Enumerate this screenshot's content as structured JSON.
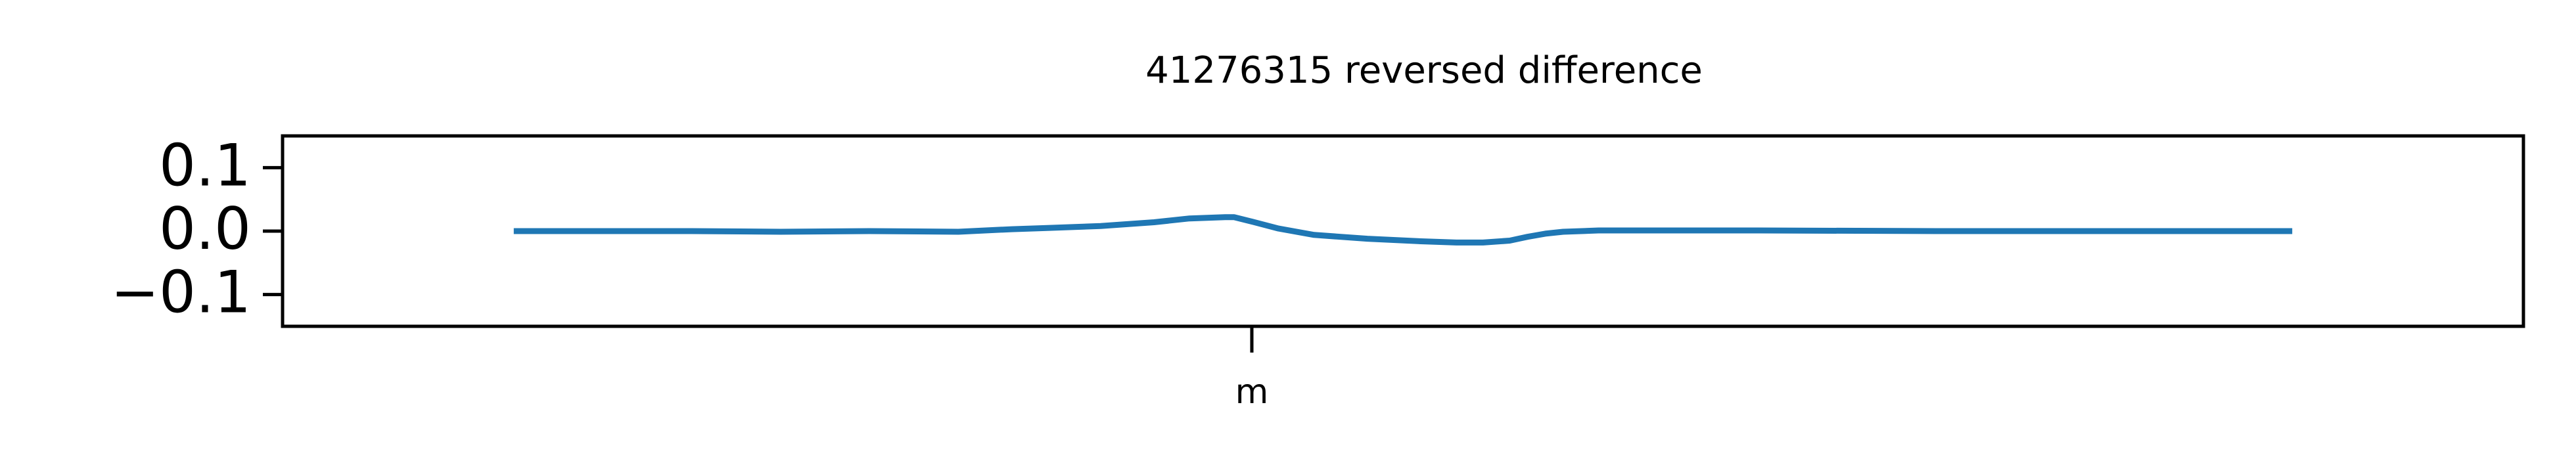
{
  "chart_data": {
    "type": "line",
    "title": "41276315 reversed difference",
    "xlabel": "",
    "ylabel": "",
    "x_ticks": [
      {
        "x": 0.415,
        "label": "m"
      }
    ],
    "xlim": [
      -0.13,
      1.13
    ],
    "ylim": [
      -0.15,
      0.15
    ],
    "y_ticks": [
      {
        "value": 0.1,
        "label": "0.1"
      },
      {
        "value": 0.0,
        "label": "0.0"
      },
      {
        "value": -0.1,
        "label": "−0.1"
      }
    ],
    "grid": false,
    "legend": null,
    "series": [
      {
        "color": "#1f77b4",
        "x": [
          0.0,
          0.05,
          0.1,
          0.15,
          0.2,
          0.25,
          0.28,
          0.3,
          0.33,
          0.36,
          0.38,
          0.4,
          0.405,
          0.415,
          0.43,
          0.45,
          0.48,
          0.51,
          0.53,
          0.545,
          0.56,
          0.57,
          0.58,
          0.59,
          0.61,
          0.64,
          0.7,
          0.8,
          0.9,
          1.0
        ],
        "y": [
          0.0,
          0.0,
          0.0,
          -0.001,
          0.0,
          -0.001,
          0.003,
          0.005,
          0.008,
          0.014,
          0.02,
          0.022,
          0.022,
          0.015,
          0.004,
          -0.006,
          -0.012,
          -0.016,
          -0.018,
          -0.018,
          -0.015,
          -0.009,
          -0.004,
          -0.001,
          0.001,
          0.001,
          0.001,
          0.0,
          0.0,
          0.0
        ]
      }
    ]
  }
}
